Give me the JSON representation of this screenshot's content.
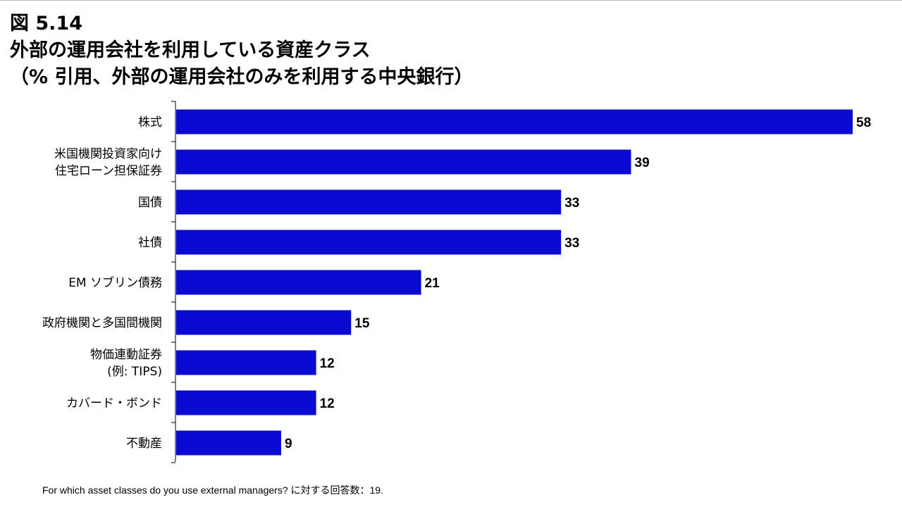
{
  "figure_number": "図 5.14",
  "title_line1": "外部の運用会社を利用している資産クラス",
  "title_line2": "（% 引用、外部の運用会社のみを利用する中央銀行）",
  "footnote": "For which asset classes do you use external managers? に対する回答数：19.",
  "colors": {
    "bar": "#0a0ad2",
    "axis": "#000000"
  },
  "chart_data": {
    "type": "bar",
    "orientation": "horizontal",
    "categories": [
      [
        "株式"
      ],
      [
        "米国機関投資家向け",
        "住宅ローン担保証券"
      ],
      [
        "国債"
      ],
      [
        "社債"
      ],
      [
        "EM ソブリン債務"
      ],
      [
        "政府機関と多国間機関"
      ],
      [
        "物価連動証券",
        "(例: TIPS)"
      ],
      [
        "カバード・ボンド"
      ],
      [
        "不動産"
      ]
    ],
    "values": [
      58,
      39,
      33,
      33,
      21,
      15,
      12,
      12,
      9
    ],
    "xlim": [
      0,
      58
    ],
    "grid": false,
    "legend": "none"
  }
}
